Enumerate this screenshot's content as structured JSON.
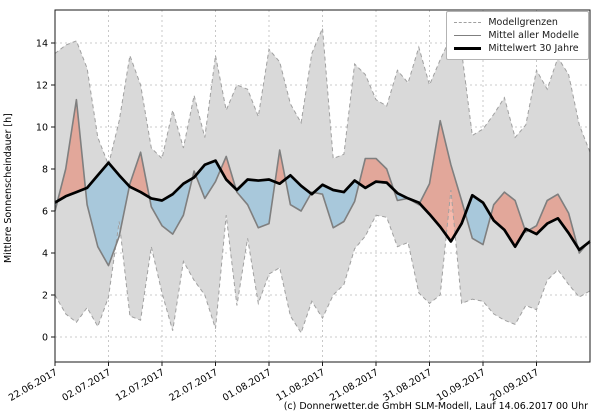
{
  "figure": {
    "ylabel": "Mittlere Sonnenscheindauer [h]",
    "caption": "(c) Donnerwetter.de GmbH SLM-Modell, Lauf 14.06.2017 00 Uhr",
    "legend": {
      "items": [
        {
          "label": "Modellgrenzen",
          "style": "dashed-gray"
        },
        {
          "label": "Mittel aller Modelle",
          "style": "solid-gray"
        },
        {
          "label": "Mittelwert 30 Jahre",
          "style": "thick-black"
        }
      ]
    }
  },
  "chart_data": {
    "type": "line",
    "title": "",
    "xlabel": "",
    "ylabel": "Mittlere Sonnenscheindauer [h]",
    "grid": "dashed",
    "legend_position": "top-right",
    "x_unit": "days since 22.06.2017 (daily model data, chart ends 30.09.2017)",
    "xlim_days": [
      0,
      100
    ],
    "ylim": [
      -1.2,
      15.6
    ],
    "y_ticks": [
      0,
      2,
      4,
      6,
      8,
      10,
      12,
      14
    ],
    "x_ticks": [
      {
        "day": 0,
        "label": "22.06.2017"
      },
      {
        "day": 10,
        "label": "02.07.2017"
      },
      {
        "day": 20,
        "label": "12.07.2017"
      },
      {
        "day": 30,
        "label": "22.07.2017"
      },
      {
        "day": 40,
        "label": "01.08.2017"
      },
      {
        "day": 50,
        "label": "11.08.2017"
      },
      {
        "day": 60,
        "label": "21.08.2017"
      },
      {
        "day": 70,
        "label": "31.08.2017"
      },
      {
        "day": 80,
        "label": "10.09.2017"
      },
      {
        "day": 90,
        "label": "20.09.2017"
      }
    ],
    "days": [
      0,
      2,
      4,
      6,
      8,
      10,
      12,
      14,
      16,
      18,
      20,
      22,
      24,
      26,
      28,
      30,
      32,
      34,
      36,
      38,
      40,
      42,
      44,
      46,
      48,
      50,
      52,
      54,
      56,
      58,
      60,
      62,
      64,
      66,
      68,
      70,
      72,
      74,
      76,
      78,
      80,
      82,
      84,
      86,
      88,
      90,
      92,
      94,
      96,
      98,
      100
    ],
    "series": [
      {
        "name": "Modellgrenzen (Maximum)",
        "role": "range_max",
        "values": [
          13.5,
          13.9,
          14.1,
          12.8,
          9.5,
          8.2,
          10.3,
          13.4,
          12.0,
          9.0,
          8.5,
          10.8,
          9.0,
          11.5,
          9.5,
          13.4,
          10.8,
          12.0,
          11.8,
          10.5,
          13.7,
          13.1,
          11.1,
          10.2,
          13.5,
          14.7,
          8.5,
          8.7,
          13.0,
          12.5,
          11.3,
          11.0,
          12.7,
          12.1,
          13.8,
          12.0,
          13.2,
          14.3,
          13.6,
          9.6,
          9.9,
          10.6,
          11.4,
          9.5,
          10.1,
          12.7,
          11.8,
          13.3,
          12.5,
          10.1,
          8.8
        ]
      },
      {
        "name": "Modellgrenzen (Minimum)",
        "role": "range_min",
        "values": [
          2.0,
          1.1,
          0.7,
          1.4,
          0.5,
          1.9,
          5.5,
          1.0,
          0.8,
          4.3,
          2.1,
          0.3,
          3.6,
          2.7,
          2.0,
          0.4,
          5.8,
          1.5,
          4.7,
          1.6,
          3.0,
          3.3,
          1.0,
          0.2,
          1.7,
          0.9,
          2.0,
          2.5,
          4.2,
          4.8,
          5.8,
          5.7,
          4.3,
          4.5,
          2.1,
          1.6,
          2.0,
          7.0,
          1.6,
          1.8,
          1.7,
          1.1,
          0.8,
          0.6,
          1.5,
          1.3,
          2.7,
          3.2,
          2.5,
          1.9,
          2.2
        ]
      },
      {
        "name": "Mittel aller Modelle",
        "role": "model_mean",
        "values": [
          6.0,
          8.0,
          11.3,
          6.3,
          4.3,
          3.4,
          4.8,
          7.3,
          8.8,
          6.2,
          5.3,
          4.9,
          5.8,
          7.9,
          6.6,
          7.4,
          8.6,
          6.9,
          6.3,
          5.2,
          5.4,
          8.9,
          6.3,
          6.0,
          6.9,
          6.8,
          5.2,
          5.5,
          6.45,
          8.5,
          8.5,
          8.0,
          6.5,
          6.6,
          6.3,
          7.3,
          10.3,
          8.2,
          6.5,
          4.7,
          4.4,
          6.3,
          6.9,
          6.5,
          5.0,
          5.3,
          6.5,
          6.8,
          5.9,
          4.0,
          4.6
        ]
      },
      {
        "name": "Mittelwert 30 Jahre",
        "role": "climate_mean",
        "values": [
          6.4,
          6.7,
          6.9,
          7.1,
          7.7,
          8.3,
          7.7,
          7.15,
          6.9,
          6.6,
          6.5,
          6.8,
          7.3,
          7.6,
          8.2,
          8.4,
          7.5,
          7.0,
          7.5,
          7.45,
          7.5,
          7.3,
          7.7,
          7.2,
          6.8,
          7.25,
          7.0,
          6.9,
          7.45,
          7.1,
          7.4,
          7.35,
          6.85,
          6.6,
          6.4,
          5.85,
          5.25,
          4.55,
          5.4,
          6.75,
          6.4,
          5.55,
          5.1,
          4.3,
          5.15,
          4.9,
          5.4,
          5.65,
          4.95,
          4.15,
          4.55
        ]
      }
    ],
    "colors": {
      "band_fill": "#d9d9d9",
      "range_line": "#a0a0a0",
      "model_mean_line": "#7f7f7f",
      "climate_mean_line": "#000000",
      "above_normal_fill": "rgba(235,118,92,0.50)",
      "below_normal_fill": "rgba(128,186,220,0.55)",
      "grid_line": "#bbbbbb",
      "axes": "#1a1a1a"
    }
  }
}
